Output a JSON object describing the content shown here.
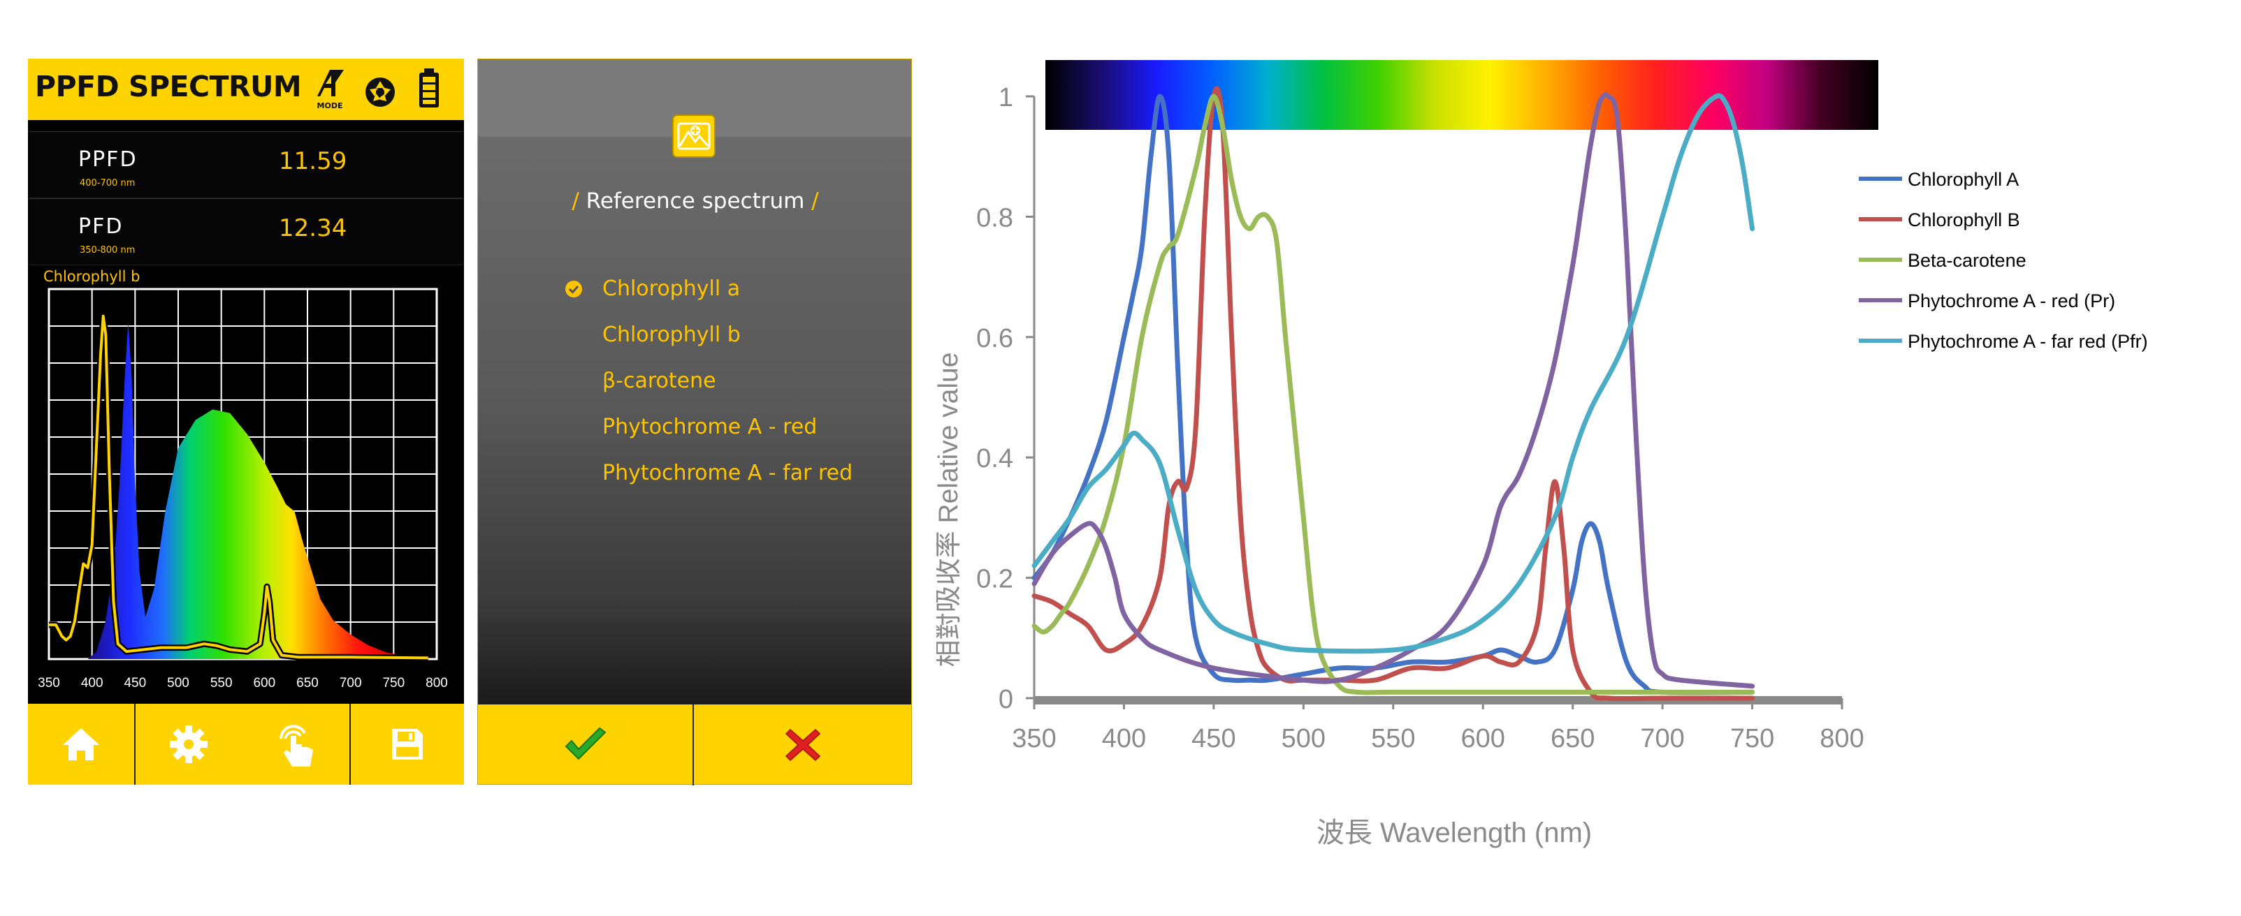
{
  "phone_app": {
    "title": "PPFD SPECTRUM",
    "header_icons": [
      "mode-icon",
      "aperture-icon",
      "battery-icon"
    ],
    "mode_label": "MODE",
    "ppfd": {
      "label": "PPFD",
      "range": "400-700 nm",
      "value": "11.59"
    },
    "pfd": {
      "label": "PFD",
      "range": "350-800 nm",
      "value": "12.34"
    },
    "spectrum_caption": "Chlorophyll b",
    "x_ticks": [
      "350",
      "400",
      "450",
      "500",
      "550",
      "600",
      "650",
      "700",
      "750",
      "800"
    ],
    "footer": [
      "home-icon",
      "gear-icon",
      "touch-icon",
      "save-icon"
    ],
    "accent": "#FFD300",
    "value_color": "#FFC400"
  },
  "reference_dialog": {
    "title": "Reference spectrum",
    "options": [
      {
        "label": "Chlorophyll a",
        "selected": true
      },
      {
        "label": "Chlorophyll b",
        "selected": false
      },
      {
        "label": "β-carotene",
        "selected": false
      },
      {
        "label": "Phytochrome A - red",
        "selected": false
      },
      {
        "label": "Phytochrome A - far red",
        "selected": false
      }
    ],
    "footer": [
      "confirm-check-icon",
      "cancel-x-icon"
    ]
  },
  "chart_data": {
    "type": "line",
    "xlabel": "波長 Wavelength (nm)",
    "ylabel": "相對吸收率 Relative value",
    "xlim": [
      350,
      800
    ],
    "ylim": [
      0,
      1
    ],
    "x_ticks": [
      350,
      400,
      450,
      500,
      550,
      600,
      650,
      700,
      750,
      800
    ],
    "y_ticks": [
      0,
      0.2,
      0.4,
      0.6,
      0.8,
      1
    ],
    "y_tick_labels": [
      "0",
      "0.2",
      "0.4",
      "0.6",
      "0.8",
      "1"
    ],
    "legend_position": "top-right",
    "series": [
      {
        "name": "Chlorophyll A",
        "color": "#4472C4",
        "x": [
          350,
          360,
          370,
          380,
          390,
          400,
          405,
          410,
          415,
          420,
          425,
          430,
          435,
          440,
          450,
          460,
          470,
          480,
          500,
          520,
          540,
          560,
          580,
          600,
          610,
          620,
          630,
          640,
          650,
          655,
          660,
          665,
          670,
          680,
          690,
          700,
          750
        ],
        "y": [
          0.2,
          0.24,
          0.3,
          0.37,
          0.46,
          0.6,
          0.67,
          0.75,
          0.9,
          1.0,
          0.9,
          0.55,
          0.25,
          0.1,
          0.04,
          0.03,
          0.03,
          0.03,
          0.04,
          0.05,
          0.05,
          0.06,
          0.06,
          0.07,
          0.08,
          0.07,
          0.06,
          0.08,
          0.18,
          0.26,
          0.29,
          0.26,
          0.18,
          0.06,
          0.02,
          0.01,
          0.01
        ]
      },
      {
        "name": "Chlorophyll B",
        "color": "#C0504D",
        "x": [
          350,
          360,
          370,
          380,
          390,
          400,
          410,
          420,
          425,
          430,
          435,
          440,
          445,
          450,
          455,
          460,
          465,
          470,
          475,
          480,
          490,
          500,
          520,
          540,
          560,
          580,
          600,
          610,
          620,
          630,
          635,
          640,
          645,
          650,
          660,
          670,
          700,
          750
        ],
        "y": [
          0.17,
          0.16,
          0.14,
          0.12,
          0.08,
          0.09,
          0.12,
          0.2,
          0.32,
          0.36,
          0.35,
          0.45,
          0.8,
          1.0,
          0.95,
          0.6,
          0.3,
          0.15,
          0.08,
          0.05,
          0.03,
          0.03,
          0.03,
          0.03,
          0.05,
          0.05,
          0.07,
          0.06,
          0.06,
          0.12,
          0.25,
          0.36,
          0.25,
          0.08,
          0.01,
          0.0,
          0.0,
          0.0
        ]
      },
      {
        "name": "Beta-carotene",
        "color": "#9BBB59",
        "x": [
          350,
          355,
          360,
          365,
          370,
          380,
          390,
          400,
          410,
          420,
          425,
          430,
          440,
          445,
          450,
          455,
          460,
          465,
          470,
          475,
          480,
          485,
          490,
          495,
          500,
          505,
          510,
          520,
          530,
          550,
          600,
          650,
          700,
          750
        ],
        "y": [
          0.12,
          0.11,
          0.12,
          0.14,
          0.16,
          0.22,
          0.3,
          0.42,
          0.6,
          0.72,
          0.75,
          0.77,
          0.88,
          0.95,
          1.0,
          0.95,
          0.86,
          0.8,
          0.78,
          0.8,
          0.8,
          0.76,
          0.6,
          0.45,
          0.3,
          0.15,
          0.07,
          0.02,
          0.01,
          0.01,
          0.01,
          0.01,
          0.01,
          0.01
        ]
      },
      {
        "name": "Phytochrome A - red (Pr)",
        "color": "#8064A2",
        "x": [
          350,
          360,
          370,
          380,
          385,
          390,
          395,
          400,
          410,
          420,
          450,
          500,
          520,
          540,
          560,
          580,
          600,
          610,
          620,
          630,
          640,
          650,
          655,
          660,
          665,
          670,
          675,
          680,
          685,
          690,
          695,
          700,
          710,
          750
        ],
        "y": [
          0.19,
          0.24,
          0.27,
          0.29,
          0.28,
          0.25,
          0.2,
          0.14,
          0.1,
          0.08,
          0.05,
          0.03,
          0.03,
          0.05,
          0.08,
          0.12,
          0.22,
          0.32,
          0.37,
          0.45,
          0.56,
          0.72,
          0.82,
          0.92,
          0.99,
          1.0,
          0.96,
          0.75,
          0.45,
          0.2,
          0.07,
          0.04,
          0.03,
          0.02
        ]
      },
      {
        "name": "Phytochrome A - far red (Pfr)",
        "color": "#4BACC6",
        "x": [
          350,
          360,
          370,
          380,
          390,
          400,
          405,
          410,
          420,
          430,
          440,
          450,
          460,
          480,
          500,
          550,
          580,
          600,
          620,
          640,
          650,
          660,
          680,
          700,
          710,
          720,
          730,
          735,
          740,
          745,
          750
        ],
        "y": [
          0.22,
          0.26,
          0.3,
          0.35,
          0.38,
          0.42,
          0.44,
          0.43,
          0.39,
          0.28,
          0.18,
          0.13,
          0.11,
          0.09,
          0.08,
          0.08,
          0.1,
          0.13,
          0.19,
          0.3,
          0.4,
          0.48,
          0.6,
          0.8,
          0.9,
          0.97,
          1.0,
          0.99,
          0.95,
          0.88,
          0.78
        ]
      }
    ],
    "spectrum_bar": {
      "colors": [
        "#000000",
        "#1a0d6e",
        "#1a1aff",
        "#0060ff",
        "#00b0d0",
        "#00c040",
        "#40d000",
        "#c8e000",
        "#fff200",
        "#ffb000",
        "#ff6000",
        "#ff2020",
        "#ff0060",
        "#c00080",
        "#400020",
        "#000000"
      ]
    },
    "axis_color": "#898989",
    "grid": false
  }
}
